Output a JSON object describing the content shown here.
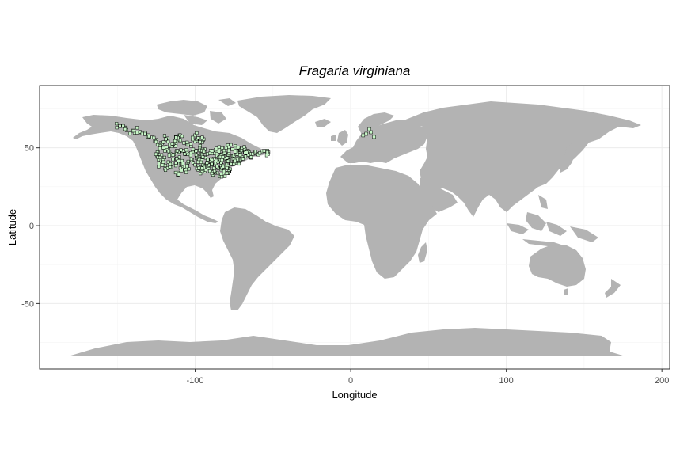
{
  "chart_data": {
    "type": "scatter",
    "title": "Fragaria virginiana",
    "xlabel": "Longitude",
    "ylabel": "Latitude",
    "xlim": [
      -200,
      205
    ],
    "ylim": [
      -92,
      90
    ],
    "x_ticks": [
      -100,
      0,
      100,
      200
    ],
    "y_ticks": [
      -50,
      0,
      50
    ],
    "grid": true,
    "basemap": "world land polygons, grey",
    "colors": {
      "land": "#b3b3b3",
      "points_fill": "#c7f5c7",
      "points_stroke": "#000000",
      "grid": "#ebebeb"
    },
    "occurrence_points": [
      [
        -148,
        64
      ],
      [
        -145,
        63
      ],
      [
        -140,
        61
      ],
      [
        -135,
        60
      ],
      [
        -130,
        58
      ],
      [
        -125,
        55
      ],
      [
        -122,
        53
      ],
      [
        -120,
        50
      ],
      [
        -118,
        49
      ],
      [
        -115,
        51
      ],
      [
        -113,
        53
      ],
      [
        -110,
        55
      ],
      [
        -105,
        52
      ],
      [
        -100,
        54
      ],
      [
        -97,
        50
      ],
      [
        -94,
        49
      ],
      [
        -90,
        48
      ],
      [
        -86,
        47
      ],
      [
        -82,
        46
      ],
      [
        -79,
        44
      ],
      [
        -76,
        45
      ],
      [
        -73,
        46
      ],
      [
        -71,
        47
      ],
      [
        -68,
        47
      ],
      [
        -65,
        45
      ],
      [
        -63,
        46
      ],
      [
        -60,
        46
      ],
      [
        -56,
        48
      ],
      [
        -53,
        47
      ],
      [
        -124,
        47
      ],
      [
        -123,
        45
      ],
      [
        -122,
        42
      ],
      [
        -121,
        39
      ],
      [
        -118,
        37
      ],
      [
        -115,
        40
      ],
      [
        -112,
        43
      ],
      [
        -110,
        40
      ],
      [
        -108,
        38
      ],
      [
        -106,
        36
      ],
      [
        -111,
        34
      ],
      [
        -105,
        40
      ],
      [
        -102,
        42
      ],
      [
        -98,
        41
      ],
      [
        -95,
        39
      ],
      [
        -92,
        38
      ],
      [
        -90,
        41
      ],
      [
        -87,
        40
      ],
      [
        -85,
        37
      ],
      [
        -83,
        39
      ],
      [
        -81,
        36
      ],
      [
        -79,
        38
      ],
      [
        -77,
        40
      ],
      [
        -75,
        42
      ],
      [
        -74,
        40
      ],
      [
        -72,
        42
      ],
      [
        -70,
        44
      ],
      [
        -94,
        44
      ],
      [
        -96,
        46
      ],
      [
        -100,
        47
      ],
      [
        -104,
        46
      ],
      [
        -108,
        48
      ],
      [
        -112,
        47
      ],
      [
        -116,
        46
      ],
      [
        -88,
        43
      ],
      [
        -84,
        43
      ],
      [
        -80,
        41
      ],
      [
        -78,
        35
      ],
      [
        -82,
        33
      ],
      [
        -86,
        34
      ],
      [
        -90,
        35
      ],
      [
        -94,
        35
      ],
      [
        -98,
        36
      ],
      [
        -84,
        49
      ],
      [
        -80,
        50
      ],
      [
        -76,
        49
      ],
      [
        -72,
        50
      ],
      [
        -68,
        49
      ],
      [
        -110,
        58
      ],
      [
        -118,
        56
      ],
      [
        -100,
        58
      ],
      [
        -95,
        55
      ],
      [
        10,
        59
      ],
      [
        13,
        60
      ],
      [
        8,
        58
      ],
      [
        15,
        57
      ],
      [
        12,
        62
      ]
    ]
  }
}
